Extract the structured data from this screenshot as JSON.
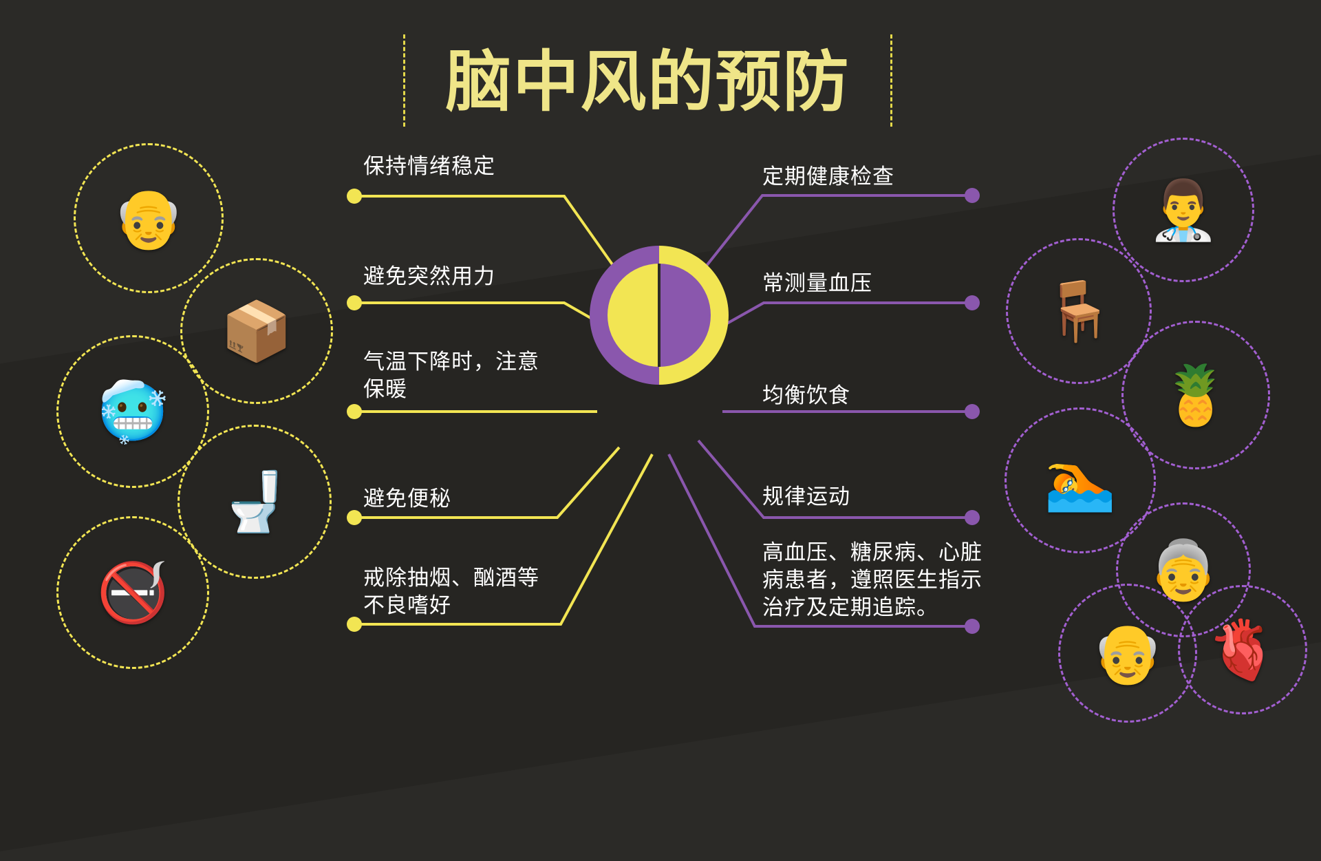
{
  "title": "脑中风的预防",
  "colors": {
    "background": "#2b2a27",
    "title": "#efe588",
    "left_accent": "#f2e553",
    "right_accent": "#8a57ad",
    "label_text": "#ffffff"
  },
  "left_items": [
    {
      "text": "保持情绪稳定"
    },
    {
      "text": "避免突然用力"
    },
    {
      "text": "气温下降时，注意\n保暖"
    },
    {
      "text": "避免便秘"
    },
    {
      "text": "戒除抽烟、酗酒等\n不良嗜好"
    }
  ],
  "right_items": [
    {
      "text": "定期健康检查"
    },
    {
      "text": "常测量血压"
    },
    {
      "text": "均衡饮食"
    },
    {
      "text": "规律运动"
    },
    {
      "text": "高血压、糖尿病、心脏\n病患者，遵照医生指示\n治疗及定期追踪。"
    }
  ],
  "left_illustrations": [
    {
      "icon": "armchair-elder-icon",
      "glyph": "👴"
    },
    {
      "icon": "lifting-box-icon",
      "glyph": "📦"
    },
    {
      "icon": "cold-person-icon",
      "glyph": "🥶"
    },
    {
      "icon": "toilet-icon",
      "glyph": "🚽"
    },
    {
      "icon": "no-smoking-icon",
      "glyph": "🚭"
    }
  ],
  "right_illustrations": [
    {
      "icon": "doctor-calendar-icon",
      "glyph": "👨‍⚕️"
    },
    {
      "icon": "desk-icon",
      "glyph": "🪑"
    },
    {
      "icon": "healthy-food-icon",
      "glyph": "🍍"
    },
    {
      "icon": "swimming-icon",
      "glyph": "🏊"
    },
    {
      "icon": "elder-woman-icon",
      "glyph": "👵"
    },
    {
      "icon": "elder-man-icon",
      "glyph": "👴"
    },
    {
      "icon": "heart-icon",
      "glyph": "🫀"
    }
  ]
}
